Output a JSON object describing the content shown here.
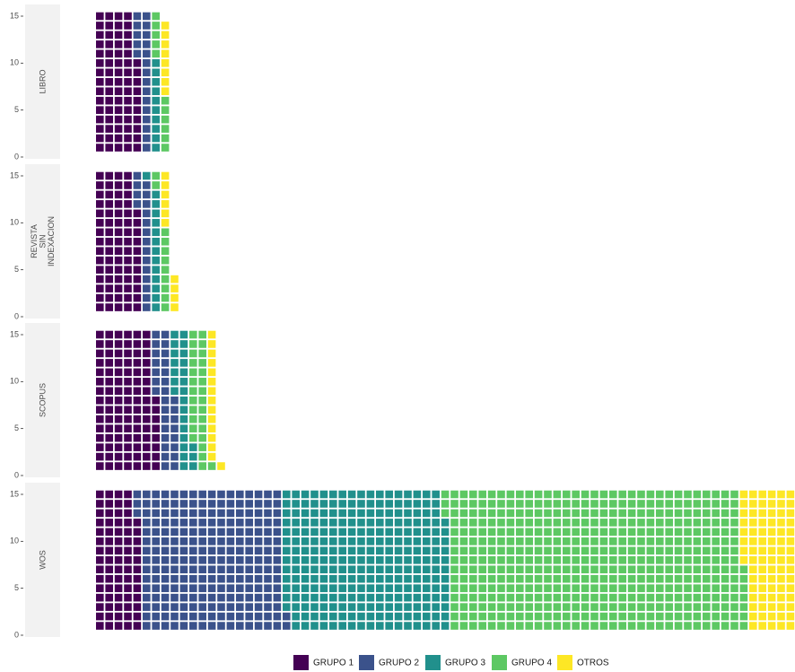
{
  "chart_data": {
    "type": "waffle",
    "series": [
      {
        "name": "GRUPO 1",
        "color": "#440154"
      },
      {
        "name": "GRUPO 2",
        "color": "#3b528b"
      },
      {
        "name": "GRUPO 3",
        "color": "#21908c"
      },
      {
        "name": "GRUPO 4",
        "color": "#5dc863"
      },
      {
        "name": "OTROS",
        "color": "#fde725"
      }
    ],
    "facets": [
      {
        "label": [
          "LIBRO"
        ],
        "values": [
          70,
          20,
          10,
          11,
          8
        ]
      },
      {
        "label": [
          "REVISTA",
          "SIN",
          "INDEXACION"
        ],
        "values": [
          71,
          18,
          14,
          11,
          10
        ]
      },
      {
        "label": [
          "SCOPUS"
        ],
        "values": [
          98,
          30,
          25,
          28,
          15
        ]
      },
      {
        "label": [
          "WOS"
        ],
        "values": [
          72,
          230,
          265,
          475,
          83
        ]
      }
    ],
    "ylim": [
      0,
      15
    ],
    "yticks": [
      0,
      5,
      10,
      15
    ]
  }
}
